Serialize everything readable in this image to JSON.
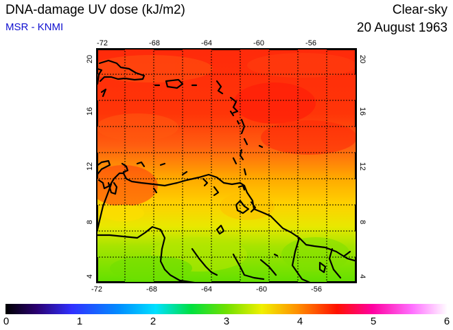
{
  "header": {
    "title": "DNA-damage UV dose (kJ/m2)",
    "source": "MSR - KNMI",
    "condition": "Clear-sky",
    "date": "20 August 1963"
  },
  "map": {
    "lon_ticks": [
      "-72",
      "-68",
      "-64",
      "-60",
      "-56"
    ],
    "lat_ticks": [
      "20",
      "16",
      "12",
      "8",
      "4"
    ]
  },
  "colorbar": {
    "labels": [
      "0",
      "1",
      "2",
      "3",
      "4",
      "5",
      "6"
    ],
    "colors": [
      "#000000",
      "#3a00a0",
      "#0040ff",
      "#00c0ff",
      "#00e040",
      "#c0e000",
      "#ffe000",
      "#ff8000",
      "#ff2000",
      "#ff00a0",
      "#ff60ff",
      "#ffffff"
    ]
  }
}
